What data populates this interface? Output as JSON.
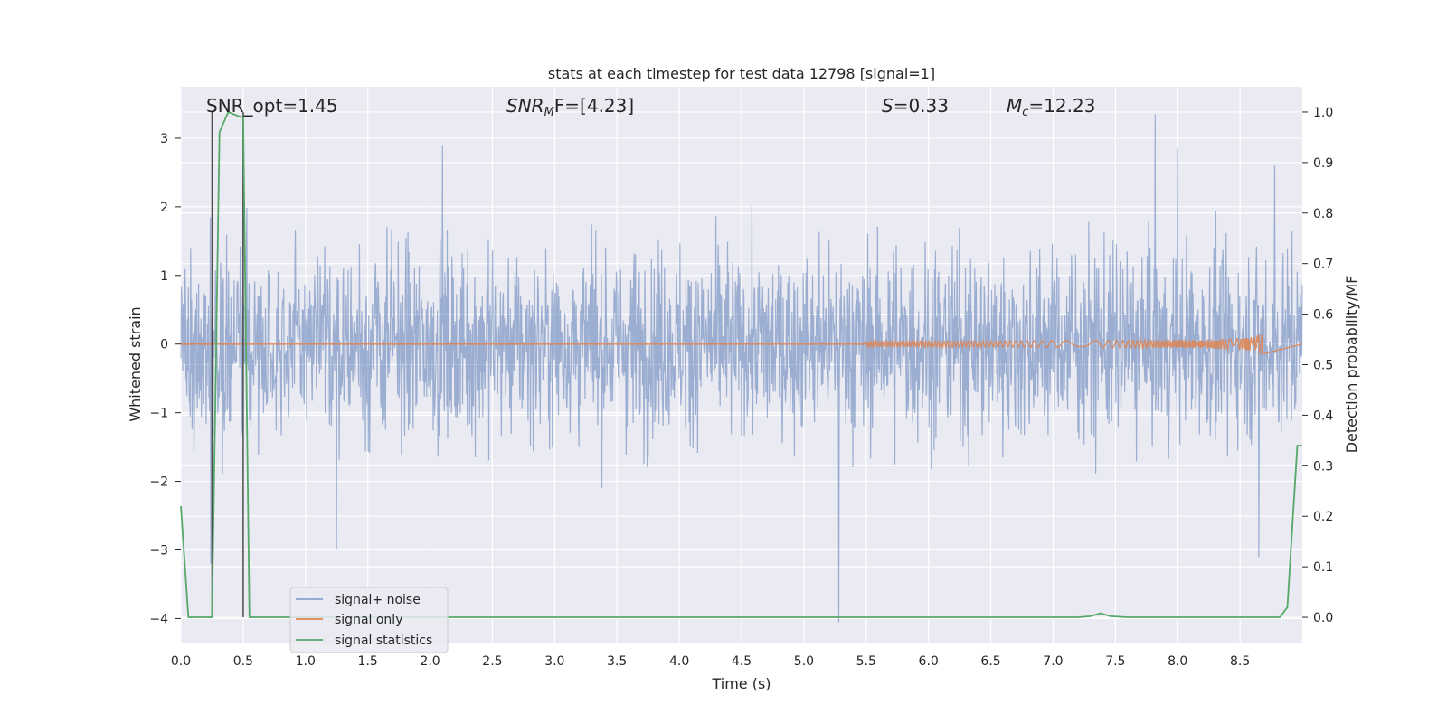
{
  "chart_data": {
    "type": "line",
    "title": "stats at each timestep for test data 12798 [signal=1]",
    "xlabel": "Time (s)",
    "ylabel_left": "Whitened strain",
    "ylabel_right": "Detection probability/MF",
    "xlim": [
      0.0,
      9.0
    ],
    "ylim_left": [
      -4.35,
      3.75
    ],
    "ylim_right": [
      -0.05,
      1.05
    ],
    "x_ticks": [
      "0.0",
      "0.5",
      "1.0",
      "1.5",
      "2.0",
      "2.5",
      "3.0",
      "3.5",
      "4.0",
      "4.5",
      "5.0",
      "5.5",
      "6.0",
      "6.5",
      "7.0",
      "7.5",
      "8.0",
      "8.5"
    ],
    "y_left_ticks": [
      "-4",
      "-3",
      "-2",
      "-1",
      "0",
      "1",
      "2",
      "3"
    ],
    "y_right_ticks": [
      "0.0",
      "0.1",
      "0.2",
      "0.3",
      "0.4",
      "0.5",
      "0.6",
      "0.7",
      "0.8",
      "0.9",
      "1.0"
    ],
    "grid": true,
    "legend_position": "lower-left",
    "annotations": {
      "snr_opt": "SNR_opt=1.45",
      "snr_mf_label": "SNR",
      "snr_mf_sub": "M",
      "snr_mf_suffix": "F=[4.23]",
      "s_label": "S",
      "s_value": "=0.33",
      "mc_label": "M",
      "mc_sub": "c",
      "mc_value": "=12.23"
    },
    "vertical_lines_x": [
      0.25,
      0.5
    ],
    "series": [
      {
        "name": "signal+ noise",
        "color": "#4c72b0",
        "description_axis": "left",
        "envelope_typical": 1.7,
        "peaks": [
          [
            0.5,
            2.95
          ],
          [
            0.24,
            -3.2
          ],
          [
            2.1,
            2.9
          ],
          [
            1.25,
            -3.0
          ],
          [
            5.28,
            -4.05
          ],
          [
            7.82,
            3.35
          ],
          [
            8.65,
            -3.1
          ],
          [
            8.0,
            2.85
          ],
          [
            8.78,
            2.6
          ]
        ]
      },
      {
        "name": "signal only",
        "color": "#dd8452",
        "description_axis": "left",
        "chirp_end_time": 8.68,
        "chirp_peak_amplitude": 0.22
      },
      {
        "name": "signal statistics",
        "color": "#55a868",
        "description_axis": "right",
        "x": [
          0.0,
          0.06,
          0.25,
          0.31,
          0.38,
          0.48,
          0.5,
          0.55,
          0.6,
          7.2,
          7.3,
          7.38,
          7.46,
          7.6,
          8.82,
          8.88,
          8.96,
          9.0
        ],
        "y": [
          0.22,
          0.0,
          0.0,
          0.96,
          1.0,
          0.99,
          0.99,
          0.0,
          0.0,
          0.0,
          0.002,
          0.008,
          0.002,
          0.0,
          0.0,
          0.02,
          0.34,
          0.34
        ]
      }
    ]
  }
}
